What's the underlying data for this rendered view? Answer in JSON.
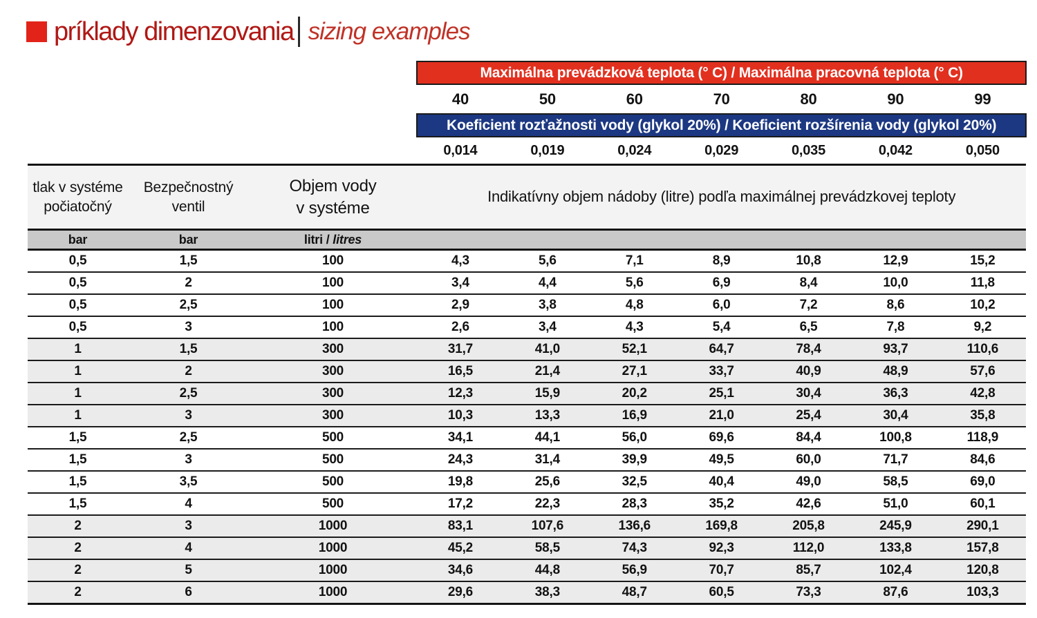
{
  "title": {
    "sk": "príklady dimenzovania",
    "en": "sizing examples",
    "square_color": "#e2231a",
    "sk_color": "#b01815",
    "en_color": "#c03227"
  },
  "bands": {
    "red_label": "Maximálna prevádzková teplota (° C) / Maximálna pracovná teplota (° C)",
    "red_color": "#e2301f",
    "temperatures": [
      "40",
      "50",
      "60",
      "70",
      "80",
      "90",
      "99"
    ],
    "blue_label": "Koeficient rozťažnosti vody (glykol 20%) / Koeficient rozšírenia vody (glykol 20%)",
    "blue_color": "#1c3882",
    "coefficients": [
      "0,014",
      "0,019",
      "0,024",
      "0,029",
      "0,035",
      "0,042",
      "0,050"
    ]
  },
  "table": {
    "headers": {
      "pressure": "tlak v systéme\npočiatočný",
      "valve": "Bezpečnostný\nventil",
      "volume": "Objem vody\nv systéme",
      "indicative": "Indikatívny objem nádoby (litre) podľa maximálnej prevádzkovej teploty"
    },
    "units": {
      "pressure": "bar",
      "valve": "bar",
      "volume_sk": "litri / ",
      "volume_en": "litres"
    },
    "rows": [
      {
        "pressure": "0,5",
        "valve": "1,5",
        "volume": "100",
        "values": [
          "4,3",
          "5,6",
          "7,1",
          "8,9",
          "10,8",
          "12,9",
          "15,2"
        ],
        "shaded": false
      },
      {
        "pressure": "0,5",
        "valve": "2",
        "volume": "100",
        "values": [
          "3,4",
          "4,4",
          "5,6",
          "6,9",
          "8,4",
          "10,0",
          "11,8"
        ],
        "shaded": false
      },
      {
        "pressure": "0,5",
        "valve": "2,5",
        "volume": "100",
        "values": [
          "2,9",
          "3,8",
          "4,8",
          "6,0",
          "7,2",
          "8,6",
          "10,2"
        ],
        "shaded": false
      },
      {
        "pressure": "0,5",
        "valve": "3",
        "volume": "100",
        "values": [
          "2,6",
          "3,4",
          "4,3",
          "5,4",
          "6,5",
          "7,8",
          "9,2"
        ],
        "shaded": false
      },
      {
        "pressure": "1",
        "valve": "1,5",
        "volume": "300",
        "values": [
          "31,7",
          "41,0",
          "52,1",
          "64,7",
          "78,4",
          "93,7",
          "110,6"
        ],
        "shaded": true
      },
      {
        "pressure": "1",
        "valve": "2",
        "volume": "300",
        "values": [
          "16,5",
          "21,4",
          "27,1",
          "33,7",
          "40,9",
          "48,9",
          "57,6"
        ],
        "shaded": true
      },
      {
        "pressure": "1",
        "valve": "2,5",
        "volume": "300",
        "values": [
          "12,3",
          "15,9",
          "20,2",
          "25,1",
          "30,4",
          "36,3",
          "42,8"
        ],
        "shaded": true
      },
      {
        "pressure": "1",
        "valve": "3",
        "volume": "300",
        "values": [
          "10,3",
          "13,3",
          "16,9",
          "21,0",
          "25,4",
          "30,4",
          "35,8"
        ],
        "shaded": true
      },
      {
        "pressure": "1,5",
        "valve": "2,5",
        "volume": "500",
        "values": [
          "34,1",
          "44,1",
          "56,0",
          "69,6",
          "84,4",
          "100,8",
          "118,9"
        ],
        "shaded": false
      },
      {
        "pressure": "1,5",
        "valve": "3",
        "volume": "500",
        "values": [
          "24,3",
          "31,4",
          "39,9",
          "49,5",
          "60,0",
          "71,7",
          "84,6"
        ],
        "shaded": false
      },
      {
        "pressure": "1,5",
        "valve": "3,5",
        "volume": "500",
        "values": [
          "19,8",
          "25,6",
          "32,5",
          "40,4",
          "49,0",
          "58,5",
          "69,0"
        ],
        "shaded": false
      },
      {
        "pressure": "1,5",
        "valve": "4",
        "volume": "500",
        "values": [
          "17,2",
          "22,3",
          "28,3",
          "35,2",
          "42,6",
          "51,0",
          "60,1"
        ],
        "shaded": false
      },
      {
        "pressure": "2",
        "valve": "3",
        "volume": "1000",
        "values": [
          "83,1",
          "107,6",
          "136,6",
          "169,8",
          "205,8",
          "245,9",
          "290,1"
        ],
        "shaded": true
      },
      {
        "pressure": "2",
        "valve": "4",
        "volume": "1000",
        "values": [
          "45,2",
          "58,5",
          "74,3",
          "92,3",
          "112,0",
          "133,8",
          "157,8"
        ],
        "shaded": true
      },
      {
        "pressure": "2",
        "valve": "5",
        "volume": "1000",
        "values": [
          "34,6",
          "44,8",
          "56,9",
          "70,7",
          "85,7",
          "102,4",
          "120,8"
        ],
        "shaded": true
      },
      {
        "pressure": "2",
        "valve": "6",
        "volume": "1000",
        "values": [
          "29,6",
          "38,3",
          "48,7",
          "60,5",
          "73,3",
          "87,6",
          "103,3"
        ],
        "shaded": true
      }
    ]
  }
}
